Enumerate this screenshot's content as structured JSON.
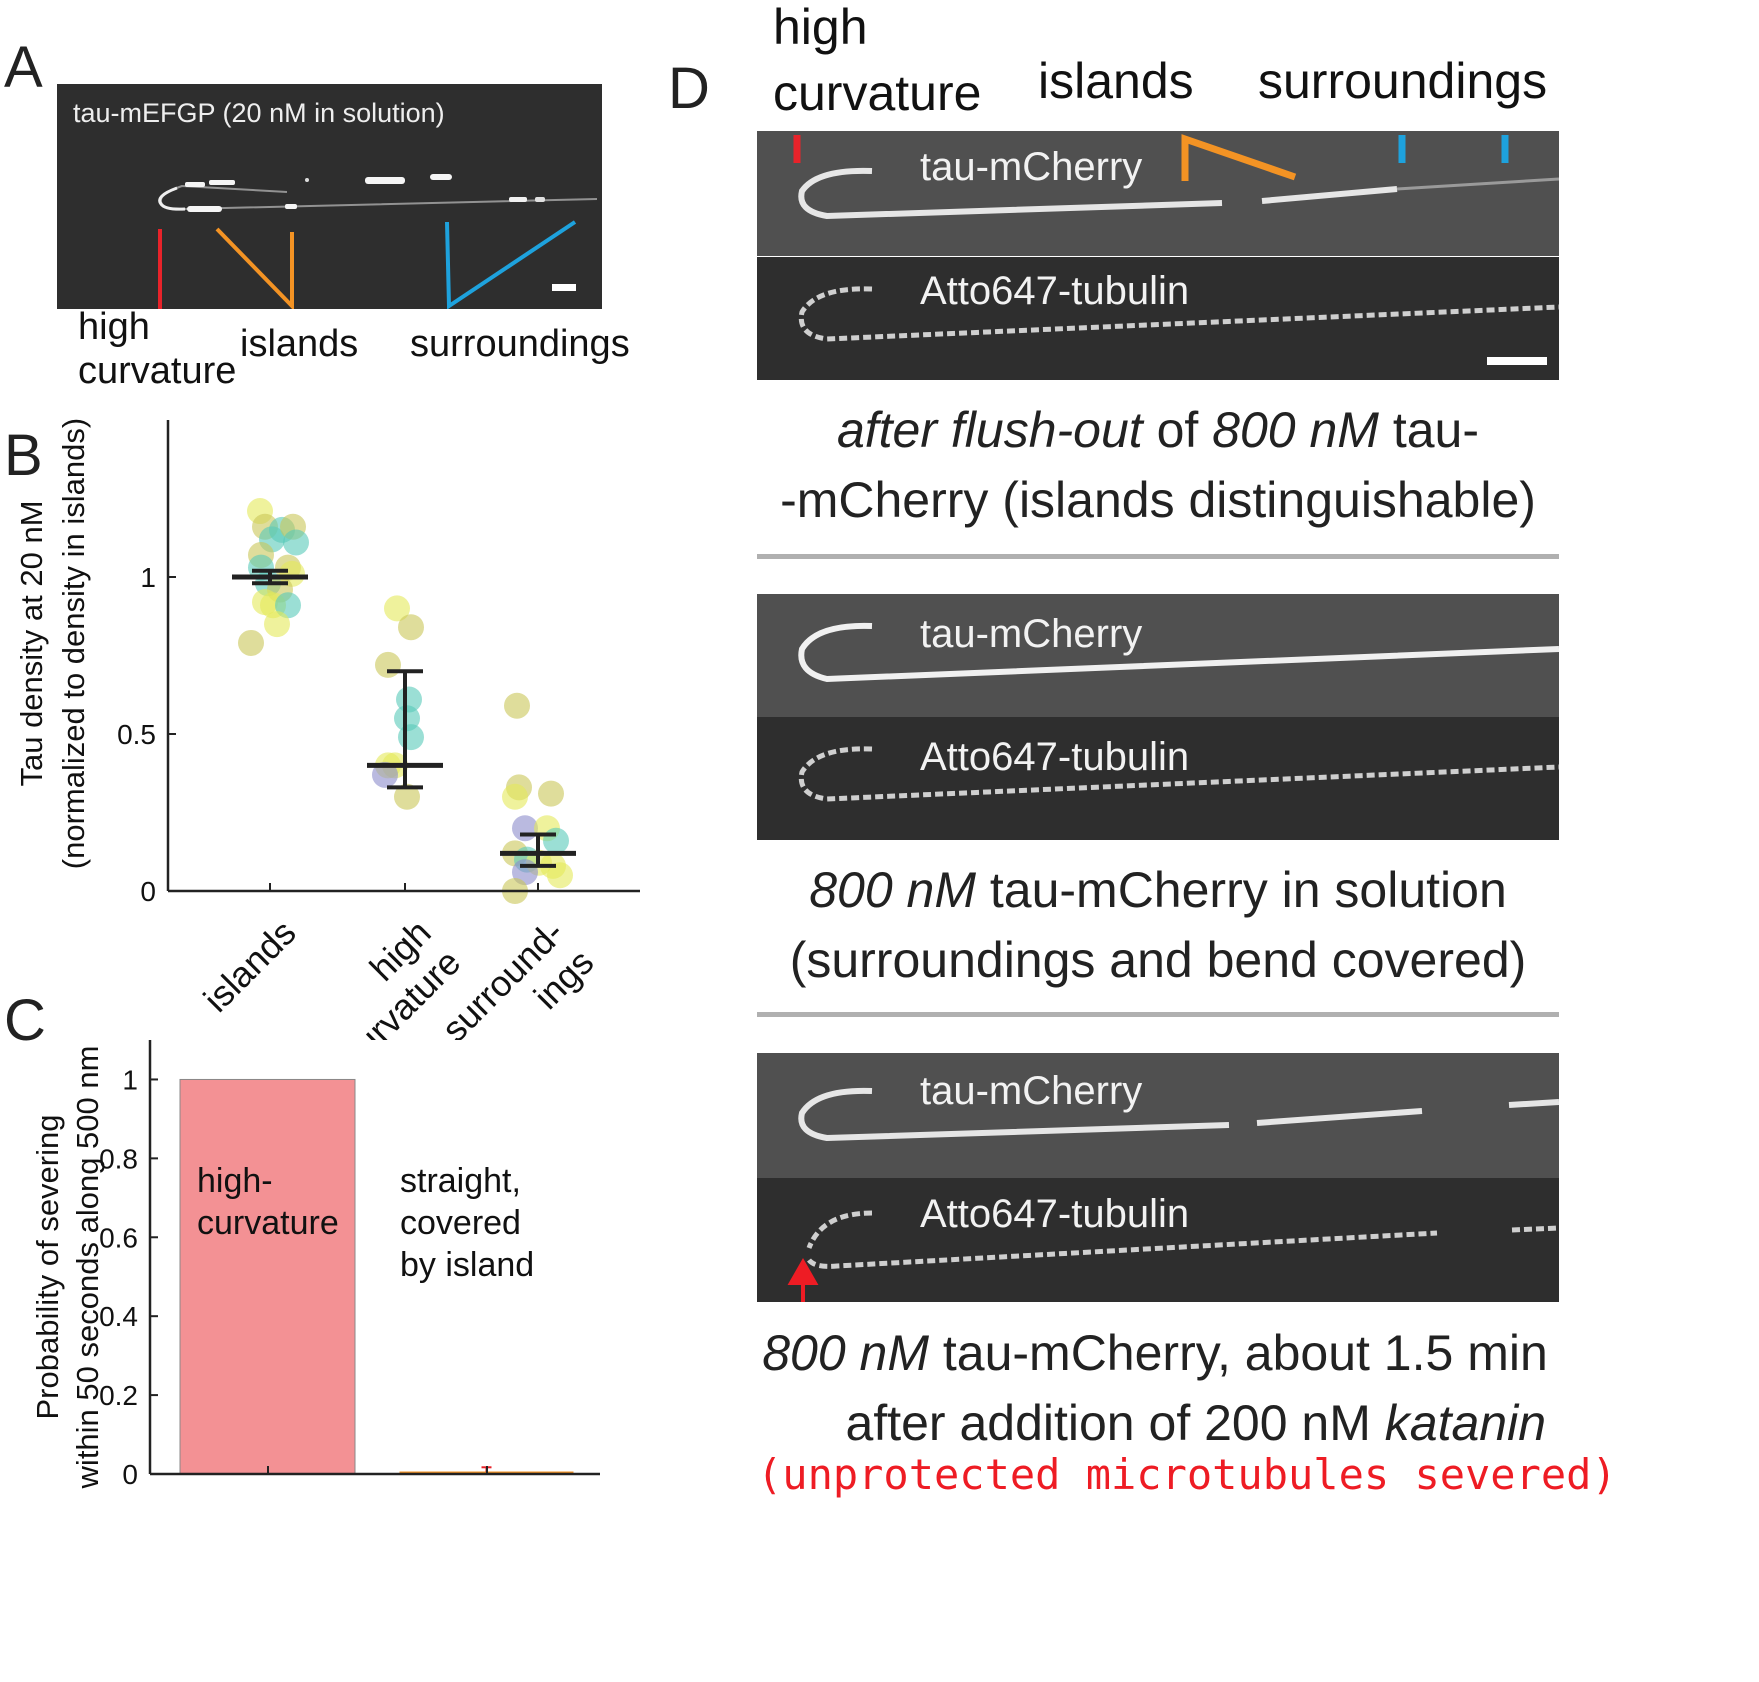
{
  "panels": {
    "A": {
      "letter": "A",
      "image_title": "tau-mEFGP (20 nM in solution)",
      "labels": {
        "high_curvature": "high\ncurvature",
        "islands": "islands",
        "surroundings": "surroundings"
      }
    },
    "B": {
      "letter": "B"
    },
    "C": {
      "letter": "C"
    },
    "D": {
      "letter": "D",
      "header": {
        "high_curvature": "high\ncurvature",
        "islands": "islands",
        "surroundings": "surroundings"
      },
      "rows": [
        {
          "top_label": "tau-mCherry",
          "bottom_label": "Atto647-tubulin",
          "caption": {
            "line1_em1": "after flush-out",
            "line1_mid": " of ",
            "line1_em2": "800 nM",
            "line1_end": " tau-",
            "line2": "-mCherry (islands distinguishable)"
          }
        },
        {
          "top_label": "tau-mCherry",
          "bottom_label": "Atto647-tubulin",
          "caption": {
            "line1_em": "800 nM",
            "line1_end": " tau-mCherry in solution",
            "line2": "(surroundings and bend covered)"
          }
        },
        {
          "top_label": "tau-mCherry",
          "bottom_label": "Atto647-tubulin",
          "caption": {
            "line1_em": "800 nM",
            "line1_end": " tau-mCherry, about 1.5 min",
            "line2_start": "after addition of 200 nM ",
            "line2_em": "katanin",
            "line3": "(unprotected microtubules severed)"
          }
        }
      ]
    }
  },
  "colors": {
    "red": "#e8232a",
    "orange": "#f39324",
    "blue": "#1ea2dd",
    "caption_red": "#ee1c24",
    "bar_fill": "#f39194"
  },
  "chart_data": [
    {
      "type": "scatter",
      "panel": "B",
      "ylabel": "Tau density at 20 nM\n(normalized to density in islands)",
      "categories": [
        "islands",
        "high\ncurvature",
        "surround-\nings"
      ],
      "ylim": [
        0,
        1.5
      ],
      "yticks": [
        0,
        0.5,
        1
      ],
      "points": [
        {
          "cat": 0,
          "dx": -0.1,
          "y": 1.21,
          "c": "#e5ea5a"
        },
        {
          "cat": 0,
          "dx": -0.05,
          "y": 1.16,
          "c": "#c9c659"
        },
        {
          "cat": 0,
          "dx": 0.02,
          "y": 1.12,
          "c": "#59c9b9"
        },
        {
          "cat": 0,
          "dx": 0.12,
          "y": 1.15,
          "c": "#59c9b9"
        },
        {
          "cat": 0,
          "dx": 0.23,
          "y": 1.16,
          "c": "#c9c659"
        },
        {
          "cat": 0,
          "dx": 0.26,
          "y": 1.11,
          "c": "#59c9b9"
        },
        {
          "cat": 0,
          "dx": -0.09,
          "y": 1.07,
          "c": "#c9c659"
        },
        {
          "cat": 0,
          "dx": -0.09,
          "y": 1.03,
          "c": "#59c9b9"
        },
        {
          "cat": 0,
          "dx": 0.18,
          "y": 1.03,
          "c": "#c9c659"
        },
        {
          "cat": 0,
          "dx": 0.22,
          "y": 1.01,
          "c": "#e5ea5a"
        },
        {
          "cat": 0,
          "dx": -0.02,
          "y": 0.98,
          "c": "#59c9b9"
        },
        {
          "cat": 0,
          "dx": 0.1,
          "y": 0.96,
          "c": "#c9c659"
        },
        {
          "cat": 0,
          "dx": -0.05,
          "y": 0.92,
          "c": "#e5ea5a"
        },
        {
          "cat": 0,
          "dx": 0.03,
          "y": 0.91,
          "c": "#e5ea5a"
        },
        {
          "cat": 0,
          "dx": 0.18,
          "y": 0.91,
          "c": "#59c9b9"
        },
        {
          "cat": 0,
          "dx": 0.07,
          "y": 0.85,
          "c": "#e5ea5a"
        },
        {
          "cat": 0,
          "dx": -0.19,
          "y": 0.79,
          "c": "#c9c659"
        },
        {
          "cat": 1,
          "dx": -0.08,
          "y": 0.9,
          "c": "#e5ea5a"
        },
        {
          "cat": 1,
          "dx": 0.06,
          "y": 0.84,
          "c": "#c9c659"
        },
        {
          "cat": 1,
          "dx": -0.17,
          "y": 0.72,
          "c": "#c9c659"
        },
        {
          "cat": 1,
          "dx": 0.04,
          "y": 0.61,
          "c": "#59c9b9"
        },
        {
          "cat": 1,
          "dx": 0.02,
          "y": 0.55,
          "c": "#59c9b9"
        },
        {
          "cat": 1,
          "dx": 0.06,
          "y": 0.49,
          "c": "#59c9b9"
        },
        {
          "cat": 1,
          "dx": -0.17,
          "y": 0.4,
          "c": "#e5ea5a"
        },
        {
          "cat": 1,
          "dx": -0.1,
          "y": 0.4,
          "c": "#e5ea5a"
        },
        {
          "cat": 1,
          "dx": -0.2,
          "y": 0.37,
          "c": "#8c8ccc"
        },
        {
          "cat": 1,
          "dx": 0.02,
          "y": 0.3,
          "c": "#c9c659"
        },
        {
          "cat": 2,
          "dx": -0.21,
          "y": 0.59,
          "c": "#c9c659"
        },
        {
          "cat": 2,
          "dx": -0.19,
          "y": 0.33,
          "c": "#c9c659"
        },
        {
          "cat": 2,
          "dx": -0.23,
          "y": 0.3,
          "c": "#e5ea5a"
        },
        {
          "cat": 2,
          "dx": 0.13,
          "y": 0.31,
          "c": "#c9c659"
        },
        {
          "cat": 2,
          "dx": -0.13,
          "y": 0.2,
          "c": "#8c8ccc"
        },
        {
          "cat": 2,
          "dx": 0.09,
          "y": 0.2,
          "c": "#e5ea5a"
        },
        {
          "cat": 2,
          "dx": 0.18,
          "y": 0.16,
          "c": "#59c9b9"
        },
        {
          "cat": 2,
          "dx": -0.23,
          "y": 0.12,
          "c": "#c9c659"
        },
        {
          "cat": 2,
          "dx": -0.11,
          "y": 0.1,
          "c": "#59c9b9"
        },
        {
          "cat": 2,
          "dx": 0.01,
          "y": 0.09,
          "c": "#e5ea5a"
        },
        {
          "cat": 2,
          "dx": 0.15,
          "y": 0.08,
          "c": "#e5ea5a"
        },
        {
          "cat": 2,
          "dx": -0.13,
          "y": 0.06,
          "c": "#8c8ccc"
        },
        {
          "cat": 2,
          "dx": 0.22,
          "y": 0.05,
          "c": "#e5ea5a"
        },
        {
          "cat": 2,
          "dx": -0.23,
          "y": 0.0,
          "c": "#c9c659"
        }
      ],
      "summary": [
        {
          "cat": 0,
          "median": 1.0,
          "low": 0.98,
          "high": 1.02
        },
        {
          "cat": 1,
          "median": 0.4,
          "low": 0.33,
          "high": 0.7
        },
        {
          "cat": 2,
          "median": 0.12,
          "low": 0.08,
          "high": 0.18
        }
      ]
    },
    {
      "type": "bar",
      "panel": "C",
      "ylabel": "Probability of severing\nwithin 50 seconds along 500 nm",
      "categories": [
        "high-\ncurvature",
        "straight,\ncovered\nby island"
      ],
      "values": [
        1.0,
        0.005
      ],
      "errors": [
        0,
        0.012
      ],
      "ylim": [
        0,
        1.1
      ],
      "yticks": [
        0,
        0.2,
        0.4,
        0.6,
        0.8,
        1
      ]
    }
  ]
}
